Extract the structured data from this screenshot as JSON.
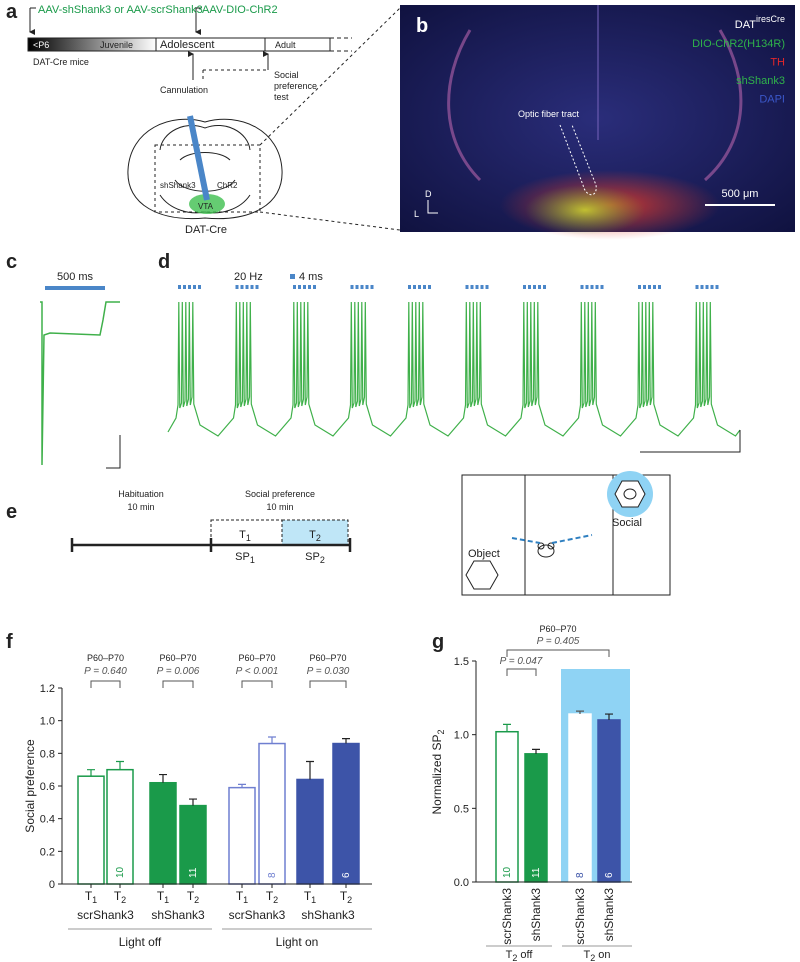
{
  "panel_labels": [
    "a",
    "b",
    "c",
    "d",
    "e",
    "f",
    "g"
  ],
  "panel_a": {
    "injection_1": "AAV-shShank3 or AAV-scrShank3",
    "injection_2": "AAV-DIO-ChR2",
    "stages": [
      "<P6",
      "Juvenile",
      "Adolescent",
      "Adult"
    ],
    "mouse_line": "DAT-Cre mice",
    "cannulation": "Cannulation",
    "test": [
      "Social",
      "preference",
      "test"
    ],
    "brain_labels": [
      "shShank3",
      "ChR2",
      "VTA",
      "DAT-Cre"
    ]
  },
  "panel_b": {
    "title": "DAT",
    "title_sup": "iresCre",
    "channels": [
      {
        "name": "DIO-ChR2(H134R)",
        "color": "#2fb34a"
      },
      {
        "name": "TH",
        "color": "#e0262a"
      },
      {
        "name": "shShank3",
        "color": "#2fb34a"
      },
      {
        "name": "DAPI",
        "color": "#3b57c9"
      }
    ],
    "annotation": "Optic fiber tract",
    "scale_bar": "500 μm",
    "axis_d": "D",
    "axis_l": "L"
  },
  "panel_c": {
    "scale": "500 ms"
  },
  "panel_d": {
    "frequency": "20 Hz",
    "pulse": "4 ms"
  },
  "panel_e": {
    "habituation": [
      "Habituation",
      "10 min"
    ],
    "social": [
      "Social preference",
      "10 min"
    ],
    "epochs": [
      {
        "base": "T",
        "sub": "1"
      },
      {
        "base": "T",
        "sub": "2"
      }
    ],
    "scores": [
      {
        "base": "SP",
        "sub": "1"
      },
      {
        "base": "SP",
        "sub": "2"
      }
    ],
    "object": "Object",
    "social_label": "Social"
  },
  "chart_data": [
    {
      "type": "bar",
      "y_label": "Social preference",
      "ylim": [
        0,
        1.2
      ],
      "yticks": [
        0,
        0.2,
        0.4,
        0.6,
        0.8,
        {
          "value": 1.0,
          "label": "1.0"
        },
        1.2
      ],
      "x_labels": [
        {
          "base": "T",
          "sub": "1"
        },
        {
          "base": "T",
          "sub": "2"
        }
      ],
      "conditions": [
        "Light off",
        "Light on"
      ],
      "series": [
        {
          "name": "scrShank3",
          "color": "#1a9a4a",
          "filled": false,
          "values": [
            0.66,
            0.7
          ],
          "errors": [
            0.04,
            0.05
          ],
          "n": 10,
          "period": "P60–P70",
          "p_text": "P = 0.640"
        },
        {
          "name": "shShank3",
          "color": "#1a9a4a",
          "filled": true,
          "values": [
            0.62,
            0.48
          ],
          "errors": [
            0.05,
            0.04
          ],
          "n": 11,
          "period": "P60–P70",
          "p_text": "P = 0.006"
        },
        {
          "name": "scrShank3",
          "color": "#6f7fd0",
          "filled": false,
          "values": [
            0.59,
            0.86
          ],
          "errors": [
            0.02,
            0.04
          ],
          "n": 8,
          "period": "P60–P70",
          "p_text": "P < 0.001"
        },
        {
          "name": "shShank3",
          "color": "#3d54a8",
          "filled": true,
          "values": [
            0.64,
            0.86
          ],
          "errors": [
            0.11,
            0.03
          ],
          "n": 6,
          "period": "P60–P70",
          "p_text": "P = 0.030"
        }
      ]
    },
    {
      "type": "bar",
      "y_label": {
        "base": "Normalized SP",
        "sub": "2"
      },
      "ylim": [
        0,
        1.5
      ],
      "yticks": [
        {
          "value": 0,
          "label": "0.0"
        },
        0.5,
        {
          "value": 1.0,
          "label": "1.0"
        },
        1.5
      ],
      "categories": [
        "scrShank3",
        "shShank3",
        "scrShank3",
        "shShank3"
      ],
      "values": [
        1.02,
        0.87,
        1.14,
        1.1
      ],
      "errors": [
        0.05,
        0.03,
        0.02,
        0.04
      ],
      "n": [
        10,
        11,
        8,
        6
      ],
      "colors": [
        "#1a9a4a",
        "#1a9a4a",
        "#ffffff",
        "#3d54a8"
      ],
      "filled": [
        false,
        true,
        true,
        true
      ],
      "groups": [
        {
          "base": "T",
          "sub": "2",
          "text": " off"
        },
        {
          "base": "T",
          "sub": "2",
          "text": " on"
        }
      ],
      "comparisons": [
        {
          "period": "P60–P70",
          "p_text": "P = 0.405"
        },
        {
          "p_text": "P = 0.047"
        }
      ]
    }
  ]
}
